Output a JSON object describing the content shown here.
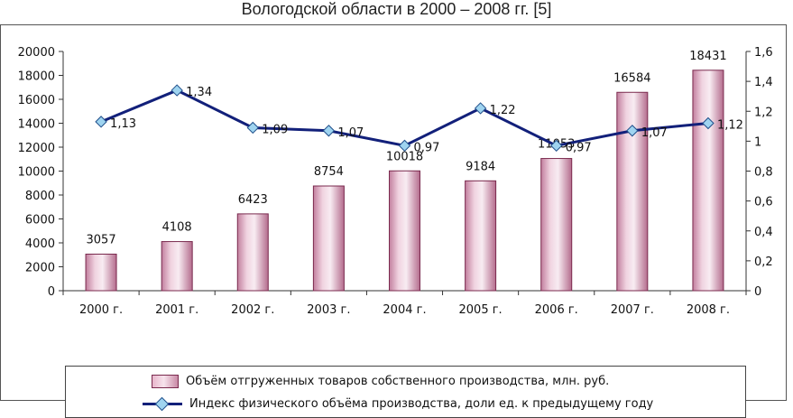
{
  "title": "Вологодской области в 2000 – 2008 гг. [5]",
  "chart_data": {
    "type": "bar",
    "categories": [
      "2000 г.",
      "2001 г.",
      "2002 г.",
      "2003 г.",
      "2004 г.",
      "2005 г.",
      "2006 г.",
      "2007 г.",
      "2008 г."
    ],
    "series": [
      {
        "name": "Объём отгруженных товаров собственного производства, млн. руб.",
        "type": "bar",
        "axis": "left",
        "values": [
          3057,
          4108,
          6423,
          8754,
          10018,
          9184,
          11053,
          16584,
          18431
        ],
        "labels": [
          "3057",
          "4108",
          "6423",
          "8754",
          "10018",
          "9184",
          "11053",
          "16584",
          "18431"
        ],
        "color": "#d9a0ba"
      },
      {
        "name": "Индекс физического объёма производства, доли ед. к предыдущему году",
        "type": "line",
        "axis": "right",
        "values": [
          1.13,
          1.34,
          1.09,
          1.07,
          0.97,
          1.22,
          0.97,
          1.07,
          1.12
        ],
        "labels": [
          "1,13",
          "1,34",
          "1,09",
          "1,07",
          "0,97",
          "1,22",
          "0,97",
          "1,07",
          "1,12"
        ],
        "color": "#12207a"
      }
    ],
    "y_left": {
      "lim": [
        0,
        20000
      ],
      "ticks": [
        "0",
        "2000",
        "4000",
        "6000",
        "8000",
        "10000",
        "12000",
        "14000",
        "16000",
        "18000",
        "20000"
      ]
    },
    "y_right": {
      "lim": [
        0,
        1.6
      ],
      "ticks": [
        "0",
        "0,2",
        "0,4",
        "0,6",
        "0,8",
        "1",
        "1,2",
        "1,4",
        "1,6"
      ]
    },
    "grid": false,
    "legend_position": "bottom"
  }
}
